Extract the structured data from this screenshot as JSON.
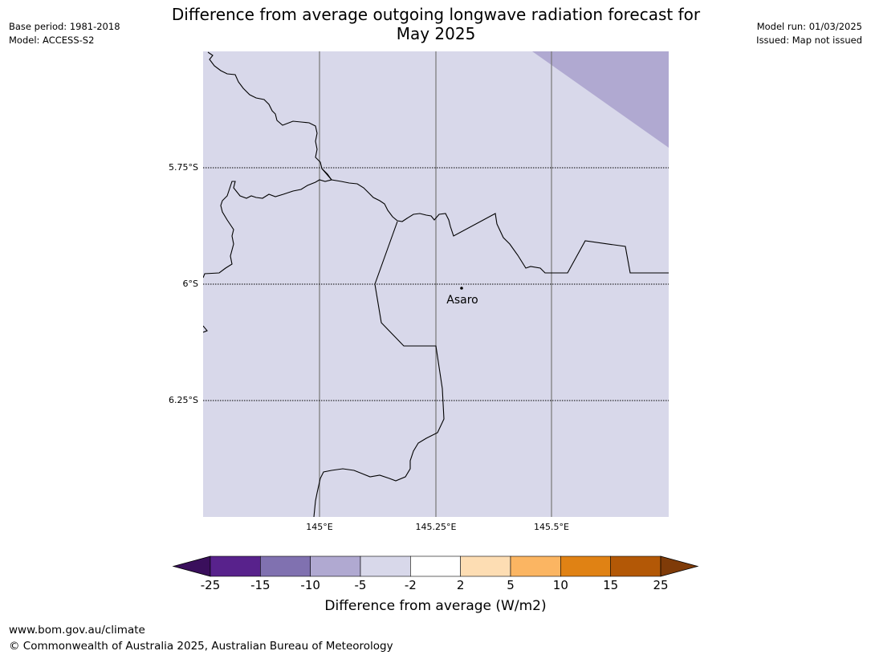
{
  "header": {
    "title_line1": "Difference from average outgoing longwave radiation forecast for",
    "title_line2": "May 2025",
    "base_period": "Base period: 1981-2018",
    "model": "Model: ACCESS-S2",
    "model_run": "Model run: 01/03/2025",
    "issued": "Issued: Map not issued"
  },
  "map": {
    "fill_color": "#d8d8ea",
    "anomaly_color": "#b0a9d1",
    "lat_labels": [
      "5.75°S",
      "6°S",
      "6.25°S"
    ],
    "lon_labels": [
      "145°E",
      "145.25°E",
      "145.5°E"
    ],
    "city": "Asaro"
  },
  "colorbar": {
    "title": "Difference from average (W/m2)",
    "ticks": [
      "-25",
      "-15",
      "-10",
      "-5",
      "-2",
      "2",
      "5",
      "10",
      "15",
      "25"
    ],
    "colors": [
      "#58228c",
      "#8071b0",
      "#b0a9d1",
      "#d8d8ea",
      "#ffffff",
      "#fdddb3",
      "#fbb562",
      "#e08214",
      "#b35806"
    ],
    "under_color": "#3a0f5c",
    "over_color": "#7f3b08"
  },
  "footer": {
    "url": "www.bom.gov.au/climate",
    "copyright": "© Commonwealth of Australia 2025, Australian Bureau of Meteorology"
  }
}
